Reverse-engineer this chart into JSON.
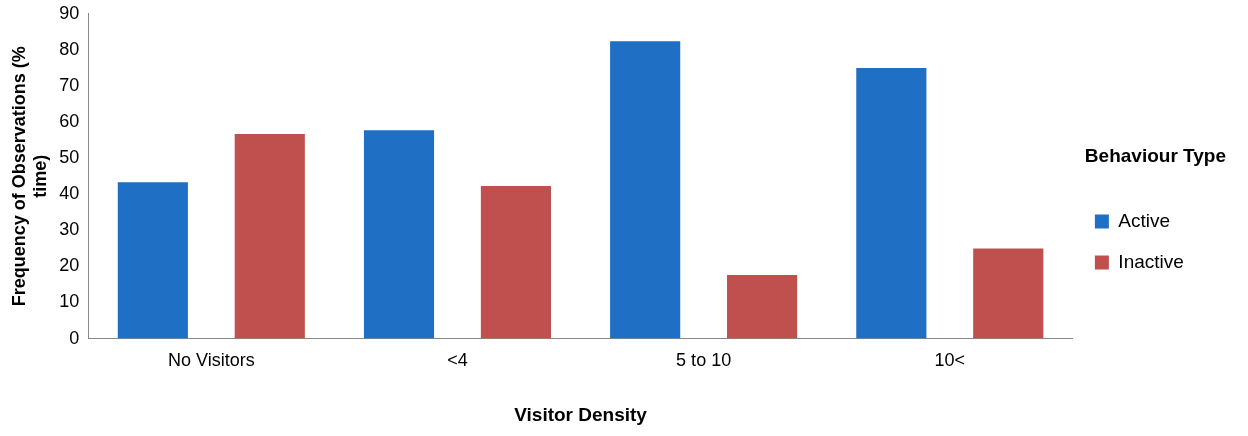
{
  "chart_data": {
    "type": "bar",
    "xlabel": "Visitor Density",
    "ylabel": "Frequency of Observations (% time)",
    "legend_title": "Behaviour Type",
    "categories": [
      "No Visitors",
      "<4",
      "5 to 10",
      "10<"
    ],
    "series": [
      {
        "name": "Active",
        "color": "#1f6fc5",
        "values": [
          43.3,
          57.7,
          82.4,
          75
        ]
      },
      {
        "name": "Inactive",
        "color": "#c0504d",
        "values": [
          56.7,
          42.3,
          17.6,
          25
        ]
      }
    ],
    "ylim": [
      0,
      90
    ],
    "yticks": [
      0,
      10,
      20,
      30,
      40,
      50,
      60,
      70,
      80,
      90
    ],
    "grid": false,
    "legend": "right"
  }
}
